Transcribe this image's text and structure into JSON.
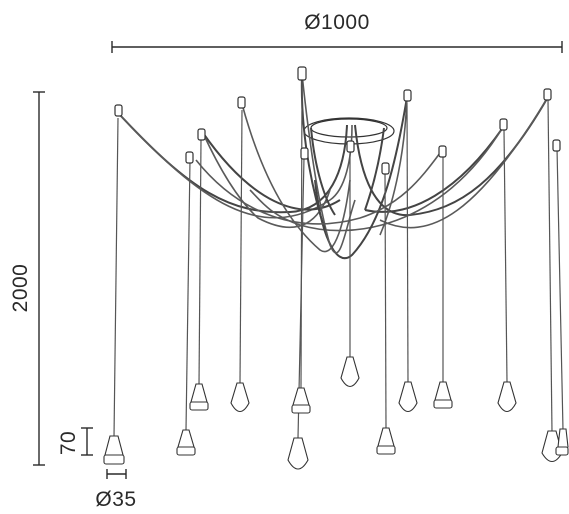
{
  "dimensions": {
    "diameter_label": "Ø1000",
    "height_label": "2000",
    "lamp_height_label": "70",
    "lamp_diameter_label": "Ø35"
  },
  "colors": {
    "line": "#2a2a2a",
    "cable": "#5a5a5a",
    "background": "#ffffff"
  }
}
